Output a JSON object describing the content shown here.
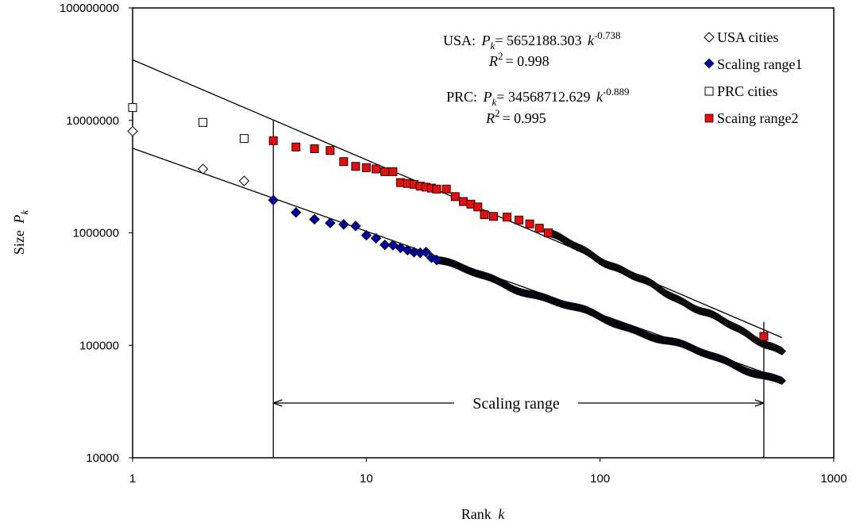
{
  "chart_data": {
    "type": "scatter",
    "title": "",
    "xlabel": "Rank",
    "xlabel_var": "k",
    "ylabel": "Size",
    "ylabel_var": "P",
    "ylabel_sub": "k",
    "x_scale": "log",
    "y_scale": "log",
    "xlim": [
      1,
      1000
    ],
    "ylim": [
      10000,
      100000000
    ],
    "x_ticks": [
      "1",
      "10",
      "100",
      "1000"
    ],
    "y_ticks": [
      "10000",
      "100000",
      "1000000",
      "10000000",
      "100000000"
    ],
    "grid": false,
    "legend_position": "top-right",
    "legend": [
      {
        "label": "USA cities",
        "marker": "diamond-open",
        "color": "#000000"
      },
      {
        "label": "Scaling range1",
        "marker": "diamond-filled",
        "color": "#0000a0"
      },
      {
        "label": "PRC cities",
        "marker": "square-open",
        "color": "#000000"
      },
      {
        "label": "Scaing range2",
        "marker": "square-filled",
        "color": "#e01010"
      }
    ],
    "series": [
      {
        "name": "USA cities",
        "values": [
          [
            1,
            8008278
          ],
          [
            2,
            3694820
          ],
          [
            3,
            2896016
          ]
        ]
      },
      {
        "name": "Scaling range1",
        "values": [
          [
            4,
            1953631
          ],
          [
            5,
            1517550
          ],
          [
            6,
            1321045
          ],
          [
            7,
            1223400
          ],
          [
            8,
            1188580
          ],
          [
            9,
            1151305
          ],
          [
            10,
            951270
          ],
          [
            11,
            895193
          ],
          [
            12,
            781870
          ],
          [
            13,
            776733
          ],
          [
            14,
            736014
          ],
          [
            15,
            702025
          ],
          [
            16,
            673070
          ],
          [
            17,
            664985
          ],
          [
            18,
            674700
          ],
          [
            19,
            600935
          ],
          [
            20,
            573190
          ]
        ]
      },
      {
        "name": "PRC cities",
        "values": [
          [
            1,
            13000000
          ],
          [
            2,
            9600000
          ],
          [
            3,
            6900000
          ]
        ]
      },
      {
        "name": "Scaing range2",
        "values": [
          [
            4,
            6600000
          ],
          [
            5,
            5800000
          ],
          [
            6,
            5600000
          ],
          [
            7,
            5400000
          ],
          [
            8,
            4300000
          ],
          [
            9,
            3900000
          ],
          [
            10,
            3800000
          ],
          [
            11,
            3700000
          ],
          [
            12,
            3500000
          ],
          [
            13,
            3500000
          ],
          [
            14,
            2800000
          ],
          [
            15,
            2750000
          ],
          [
            16,
            2700000
          ],
          [
            17,
            2600000
          ],
          [
            18,
            2550000
          ],
          [
            19,
            2500000
          ],
          [
            20,
            2450000
          ],
          [
            22,
            2450000
          ],
          [
            24,
            2100000
          ],
          [
            26,
            1900000
          ],
          [
            28,
            1800000
          ],
          [
            30,
            1700000
          ],
          [
            32,
            1450000
          ],
          [
            35,
            1400000
          ],
          [
            40,
            1380000
          ],
          [
            45,
            1300000
          ],
          [
            50,
            1200000
          ],
          [
            55,
            1100000
          ],
          [
            60,
            1000000
          ],
          [
            502,
            120000
          ]
        ]
      }
    ],
    "fit_lines": [
      {
        "name": "USA fit",
        "coef": 5652188.303,
        "exponent": -0.738,
        "x_range": [
          1,
          600
        ]
      },
      {
        "name": "PRC fit",
        "coef": 34568712.629,
        "exponent": -0.889,
        "x_range": [
          1,
          600
        ]
      }
    ],
    "annotations": {
      "usa_prefix": "USA:",
      "usa_coef": "5652188.303",
      "usa_exp": "-0.738",
      "usa_r2": "= 0.998",
      "prc_prefix": "PRC:",
      "prc_coef": "34568712.629",
      "prc_exp": "-0.889",
      "prc_r2": "= 0.995",
      "eq_var": "P",
      "eq_sub": "k",
      "eq_k": "k",
      "r2_letter": "R",
      "r2_sup": "2",
      "scaling_range_label": "Scaling range",
      "scaling_range_x": [
        4,
        502
      ]
    }
  }
}
